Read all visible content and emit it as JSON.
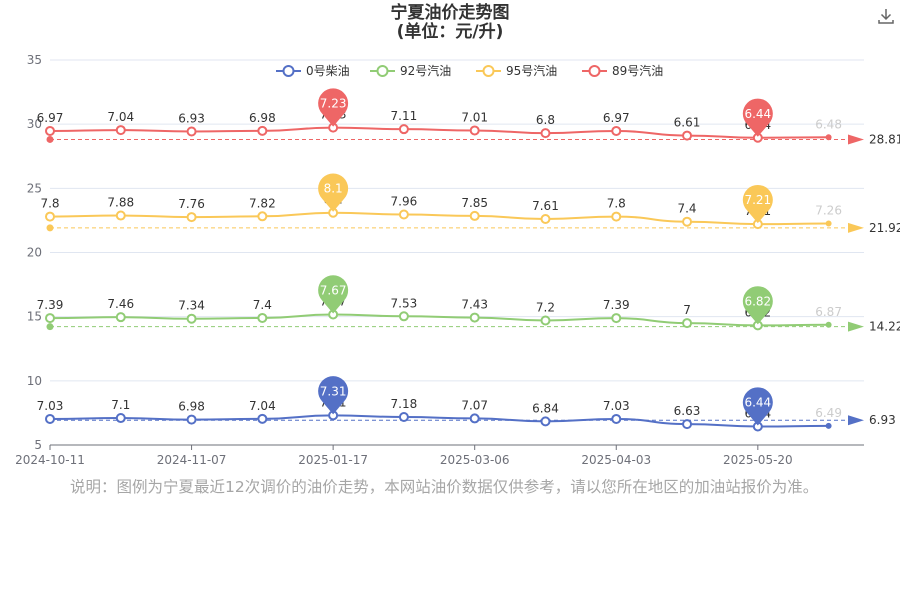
{
  "chart_title": {
    "line1": "宁夏油价走势图",
    "line2": "(单位：元/升)"
  },
  "icons": {
    "download": "download-icon"
  },
  "note": "说明：图例为宁夏最近12次调价的油价走势，本网站油价数据仅供参考，请以您所在地区的加油站报价为准。",
  "chart_data": {
    "type": "line",
    "x_tick_labels": [
      "2024-10-11",
      "2024-11-07",
      "2025-01-17",
      "2025-03-06",
      "2025-04-03",
      "2025-05-20"
    ],
    "ylim": [
      5,
      35
    ],
    "y_ticks": [
      5,
      10,
      15,
      20,
      25,
      30,
      35
    ],
    "grid": true,
    "legend_position": "top-center",
    "series": [
      {
        "name": "0号柴油",
        "color": "#5470c6",
        "offset": 0,
        "values": [
          7.03,
          7.1,
          6.98,
          7.04,
          7.31,
          7.18,
          7.07,
          6.84,
          7.03,
          6.63,
          6.44,
          6.49
        ],
        "max_pin": "7.31",
        "min_pin": "6.44",
        "avg_label": "6.93",
        "avg_value": 6.93
      },
      {
        "name": "92号汽油",
        "color": "#91cc75",
        "offset": 7.5,
        "values": [
          7.39,
          7.46,
          7.34,
          7.4,
          7.67,
          7.53,
          7.43,
          7.2,
          7.39,
          7,
          6.82,
          6.87
        ],
        "max_pin": "7.67",
        "min_pin": "6.82",
        "avg_label": "14.22",
        "avg_value": 14.22
      },
      {
        "name": "95号汽油",
        "color": "#fac858",
        "offset": 15,
        "values": [
          7.8,
          7.88,
          7.76,
          7.82,
          8.1,
          7.96,
          7.85,
          7.61,
          7.8,
          7.4,
          7.21,
          7.26
        ],
        "max_pin": "8.1",
        "min_pin": "7.21",
        "avg_label": "21.92",
        "avg_value": 21.92
      },
      {
        "name": "89号汽油",
        "color": "#ee6666",
        "offset": 22.5,
        "values": [
          6.97,
          7.04,
          6.93,
          6.98,
          7.23,
          7.11,
          7.01,
          6.8,
          6.97,
          6.61,
          6.44,
          6.48
        ],
        "max_pin": "7.23",
        "min_pin": "6.44",
        "avg_label": "28.81",
        "avg_value": 28.81
      }
    ]
  }
}
